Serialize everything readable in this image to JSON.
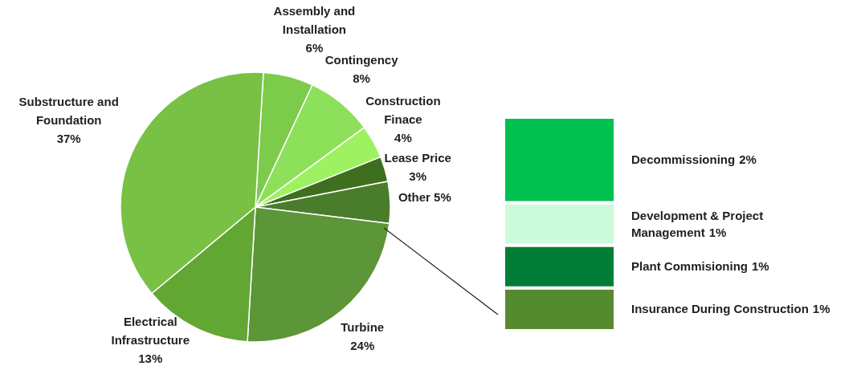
{
  "chart_data": [
    {
      "type": "pie",
      "categories": [
        "Assembly and Installation",
        "Contingency",
        "Construction Finace",
        "Lease Price",
        "Other",
        "Turbine",
        "Electrical Infrastructure",
        "Substructure and Foundation"
      ],
      "values": [
        6,
        8,
        4,
        3,
        5,
        24,
        13,
        37
      ],
      "value_labels": [
        "6%",
        "8%",
        "4%",
        "3%",
        "5%",
        "24%",
        "13%",
        "37%"
      ],
      "colors": [
        "#7ccb4a",
        "#8de05a",
        "#9ef262",
        "#3e6f1f",
        "#4a7d2b",
        "#5c9638",
        "#62a633",
        "#78c144"
      ]
    },
    {
      "type": "other",
      "categories": [
        "Decommissioning",
        "Development & Project Management",
        "Plant Commisioning",
        "Insurance During Construction"
      ],
      "values": [
        2,
        1,
        1,
        1
      ],
      "value_labels": [
        "2%",
        "1%",
        "1%",
        "1%"
      ],
      "colors": [
        "#00c050",
        "#ccfbdc",
        "#007e38",
        "#558b2f"
      ]
    }
  ]
}
